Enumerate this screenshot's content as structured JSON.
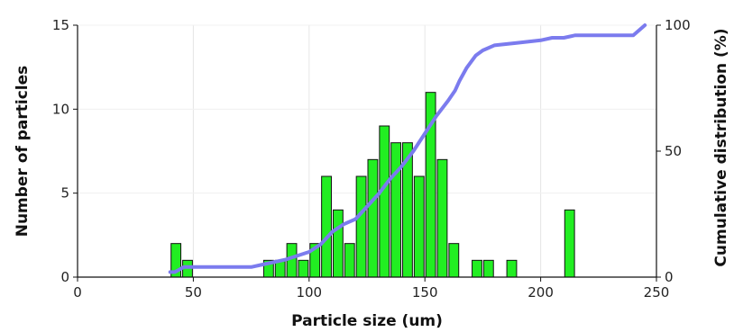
{
  "chart_data": {
    "type": "bar",
    "title": "",
    "xlabel": "Particle size (um)",
    "ylabel": "Number of particles",
    "y2label": "Cumulative distribution (%)",
    "xlim": [
      0,
      250
    ],
    "ylim": [
      0,
      15
    ],
    "y2lim": [
      0,
      100
    ],
    "xticks": [
      0,
      50,
      100,
      150,
      200,
      250
    ],
    "yticks": [
      0,
      5,
      10,
      15
    ],
    "y2ticks": [
      0,
      50,
      100
    ],
    "grid": "vertical",
    "bin_width": 5,
    "bar_color": "#22ee22",
    "line_color": "#7b7bee",
    "series": [
      {
        "type": "bar",
        "x": [
          40,
          45,
          80,
          85,
          90,
          95,
          100,
          105,
          110,
          115,
          120,
          125,
          130,
          135,
          140,
          145,
          150,
          155,
          160,
          165,
          170,
          175,
          180,
          185,
          190,
          195,
          200,
          205,
          210,
          215,
          220,
          225,
          230,
          235,
          240,
          245
        ],
        "values": [
          2,
          1,
          1,
          1,
          2,
          1,
          2,
          6,
          4,
          2,
          6,
          7,
          9,
          8,
          8,
          6,
          11,
          7,
          2,
          0,
          1,
          1,
          0,
          1,
          0,
          0,
          0,
          0,
          4,
          0,
          0,
          0,
          0,
          0,
          0,
          0
        ]
      },
      {
        "type": "line",
        "axis": "right",
        "x": [
          40,
          42,
          46,
          50,
          60,
          70,
          75,
          80,
          90,
          100,
          105,
          110,
          115,
          120,
          125,
          130,
          135,
          140,
          145,
          150,
          155,
          160,
          163,
          165,
          168,
          172,
          175,
          180,
          190,
          200,
          205,
          210,
          215,
          220,
          230,
          240,
          245
        ],
        "values": [
          2,
          2,
          4,
          4,
          4,
          4,
          4,
          5,
          7,
          10,
          13,
          18,
          21,
          23,
          28,
          33,
          39,
          44,
          50,
          57,
          64,
          70,
          74,
          78,
          83,
          88,
          90,
          92,
          93,
          94,
          95,
          95,
          96,
          96,
          96,
          96,
          100
        ]
      }
    ]
  }
}
